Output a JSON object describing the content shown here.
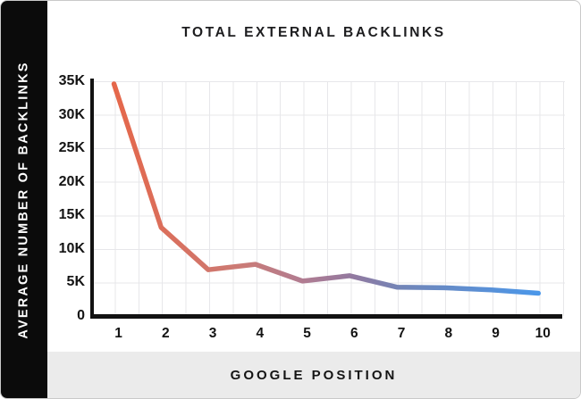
{
  "title": "TOTAL EXTERNAL BACKLINKS",
  "y_axis_title": "AVERAGE NUMBER OF BACKLINKS",
  "x_axis_title": "GOOGLE POSITION",
  "chart_data": {
    "type": "line",
    "title": "TOTAL EXTERNAL BACKLINKS",
    "xlabel": "GOOGLE POSITION",
    "ylabel": "AVERAGE NUMBER OF BACKLINKS",
    "x": [
      1,
      2,
      3,
      4,
      5,
      6,
      7,
      8,
      9,
      10
    ],
    "values": [
      34600,
      13200,
      6900,
      7700,
      5200,
      6000,
      4300,
      4200,
      3900,
      3400
    ],
    "x_tick_labels": [
      "1",
      "2",
      "3",
      "4",
      "5",
      "6",
      "7",
      "8",
      "9",
      "10"
    ],
    "y_tick_labels": [
      "35K",
      "30K",
      "25K",
      "20K",
      "15K",
      "10K",
      "5K",
      "0"
    ],
    "ylim": [
      0,
      35000
    ],
    "grid": true,
    "legend": "none",
    "line_gradient_stops": [
      {
        "offset": 0,
        "color": "#e5674a"
      },
      {
        "offset": 0.3,
        "color": "#cb7b76"
      },
      {
        "offset": 0.45,
        "color": "#b07c92"
      },
      {
        "offset": 0.56,
        "color": "#93799f"
      },
      {
        "offset": 0.68,
        "color": "#7185b8"
      },
      {
        "offset": 1,
        "color": "#4b97e9"
      }
    ]
  },
  "colors": {
    "sidebar_bg": "#0b0b0b",
    "footer_bg": "#ebebeb",
    "grid_color": "#e7e7ea",
    "axis_color": "#121212",
    "line_start": "#e5674a",
    "line_mid": "#93799f",
    "line_end": "#4b97e9"
  }
}
